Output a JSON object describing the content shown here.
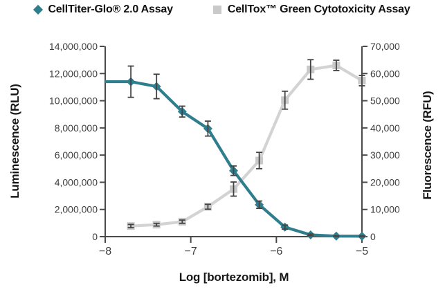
{
  "legend": {
    "items": [
      {
        "label": "CellTiter-Glo® 2.0 Assay",
        "swatch": "diamond-icon",
        "color": "#2f7e8d"
      },
      {
        "label": "CellTox™ Green Cytotoxicity Assay",
        "swatch": "square-icon",
        "color": "#c9c9ca"
      }
    ]
  },
  "chart_data": {
    "type": "line",
    "title": "",
    "xlabel": "Log [bortezomib], M",
    "ylabel_left": "Luminescence (RLU)",
    "ylabel_right": "Fluorescence (RFU)",
    "xlim": [
      -8,
      -5
    ],
    "ylim_left": [
      0,
      14000000
    ],
    "ylim_right": [
      0,
      70000
    ],
    "grid": false,
    "legend_position": "top",
    "xticks": {
      "values": [
        -8,
        -7,
        -6,
        -5
      ],
      "labels": [
        "−8",
        "−7",
        "−6",
        "−5"
      ]
    },
    "yticks_left": {
      "values": [
        0,
        2000000,
        4000000,
        6000000,
        8000000,
        10000000,
        12000000,
        14000000
      ],
      "labels": [
        "0",
        "2,000,000",
        "4,000,000",
        "6,000,000",
        "8,000,000",
        "10,000,000",
        "12,000,000",
        "14,000,000"
      ]
    },
    "yticks_right": {
      "values": [
        0,
        10000,
        20000,
        30000,
        40000,
        50000,
        60000,
        70000
      ],
      "labels": [
        "0",
        "10,000",
        "20,000",
        "30,000",
        "40,000",
        "50,000",
        "60,000",
        "70,000"
      ]
    },
    "x": [
      -7.7,
      -7.4,
      -7.1,
      -6.8,
      -6.5,
      -6.2,
      -5.9,
      -5.6,
      -5.3,
      -5.0
    ],
    "series": [
      {
        "name": "CellTiter-Glo® 2.0 Assay",
        "axis": "left",
        "marker": "diamond",
        "line_color": "#2f7e8d",
        "marker_color": "#2f7e8d",
        "line_from_axis": true,
        "values": [
          11400000,
          11050000,
          9200000,
          7950000,
          4850000,
          2350000,
          700000,
          130000,
          40000,
          30000
        ],
        "errors": [
          1150000,
          900000,
          400000,
          550000,
          350000,
          270000,
          150000,
          60000,
          20000,
          20000
        ]
      },
      {
        "name": "CellTox™ Green Cytotoxicity Assay",
        "axis": "right",
        "marker": "square",
        "line_color": "#d3d3d3",
        "marker_color": "#c9c9ca",
        "line_from_axis": false,
        "values": [
          3900,
          4400,
          5500,
          11000,
          17500,
          28000,
          50200,
          61500,
          63000,
          57400
        ],
        "errors": [
          600,
          500,
          600,
          900,
          2600,
          3000,
          3300,
          3600,
          1900,
          1900
        ]
      }
    ],
    "error_bar_color": "#434343",
    "axis_color": "#4a4a4a",
    "tick_label_color": "#3d3d3d"
  }
}
